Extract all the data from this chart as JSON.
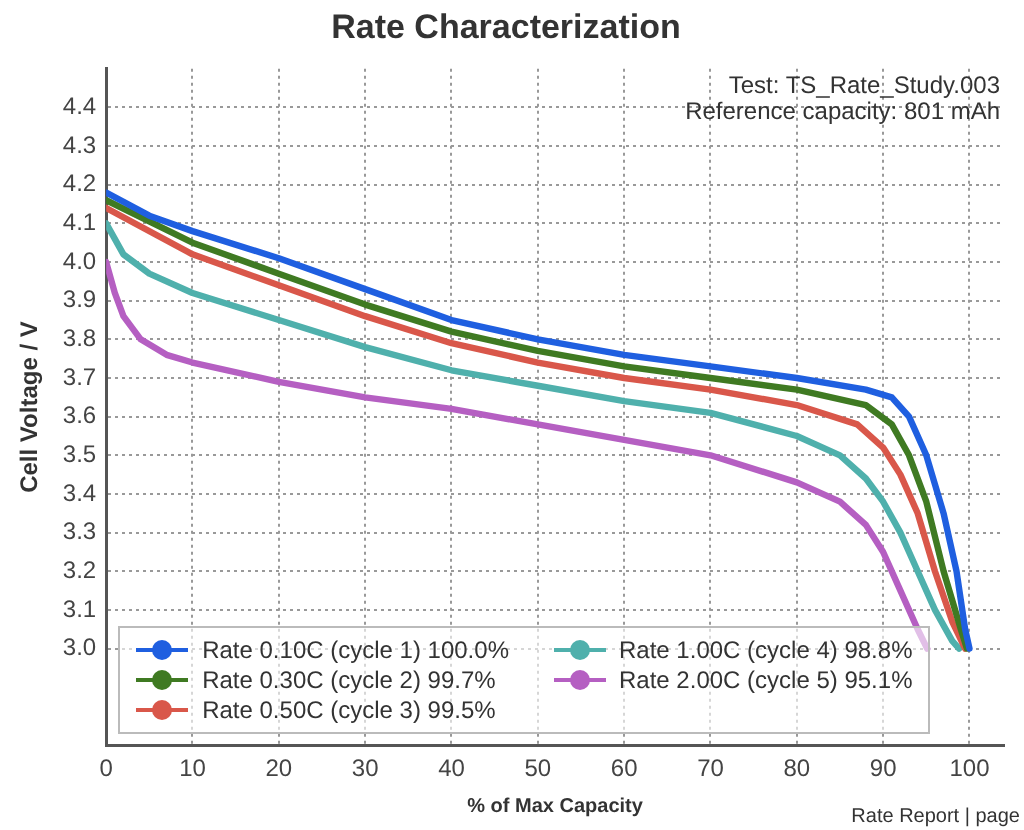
{
  "chart_data": {
    "type": "line",
    "title": "Rate Characterization",
    "xlabel": "% of Max Capacity",
    "ylabel": "Cell Voltage / V",
    "annotations": [
      "Test: TS_Rate_Study.003",
      "Reference capacity: 801 mAh",
      "Rate Report | page"
    ],
    "xlim": [
      0,
      104
    ],
    "xticks": [
      0,
      10,
      20,
      30,
      40,
      50,
      60,
      70,
      80,
      90,
      100
    ],
    "ylim": [
      2.75,
      4.5
    ],
    "yticks": [
      {
        "value": 3,
        "label": "3.0"
      },
      3.1,
      3.2,
      3.3,
      3.4,
      3.5,
      3.6,
      3.7,
      3.8,
      3.9,
      {
        "value": 4,
        "label": "4.0"
      },
      4.1,
      4.2,
      4.3,
      4.4
    ],
    "grid": true,
    "legend": "bottom left",
    "line_style": "solid",
    "marker": "none",
    "series": [
      {
        "name": "Rate 0.10C (cycle 1) 100.0%",
        "color": "#1f5fe0",
        "x": [
          0,
          5,
          10,
          20,
          30,
          40,
          50,
          60,
          70,
          80,
          88,
          91,
          93,
          95,
          97,
          98.5,
          99.5,
          100
        ],
        "values": [
          4.18,
          4.12,
          4.08,
          4.01,
          3.93,
          3.85,
          3.8,
          3.76,
          3.73,
          3.7,
          3.67,
          3.65,
          3.6,
          3.5,
          3.35,
          3.2,
          3.05,
          3.0
        ]
      },
      {
        "name": "Rate 0.30C (cycle 2) 99.7%",
        "color": "#3f7a22",
        "x": [
          0,
          10,
          20,
          30,
          40,
          50,
          60,
          70,
          80,
          88,
          91,
          93,
          95,
          97,
          99,
          99.7
        ],
        "values": [
          4.16,
          4.05,
          3.97,
          3.89,
          3.82,
          3.77,
          3.73,
          3.7,
          3.67,
          3.63,
          3.58,
          3.5,
          3.38,
          3.2,
          3.05,
          3.0
        ]
      },
      {
        "name": "Rate 0.50C (cycle 3) 99.5%",
        "color": "#d9574a",
        "x": [
          0,
          10,
          20,
          30,
          40,
          50,
          60,
          70,
          80,
          87,
          90,
          92,
          94,
          96,
          98,
          99.5
        ],
        "values": [
          4.14,
          4.02,
          3.94,
          3.86,
          3.79,
          3.74,
          3.7,
          3.67,
          3.63,
          3.58,
          3.52,
          3.45,
          3.35,
          3.2,
          3.07,
          3.0
        ]
      },
      {
        "name": "Rate 1.00C (cycle 4) 98.8%",
        "color": "#4fb0ac",
        "x": [
          0,
          2,
          5,
          10,
          20,
          30,
          40,
          50,
          60,
          70,
          80,
          85,
          88,
          90,
          92,
          94,
          96,
          98,
          98.8
        ],
        "values": [
          4.1,
          4.02,
          3.97,
          3.92,
          3.85,
          3.78,
          3.72,
          3.68,
          3.64,
          3.61,
          3.55,
          3.5,
          3.44,
          3.38,
          3.3,
          3.2,
          3.1,
          3.02,
          3.0
        ]
      },
      {
        "name": "Rate 2.00C (cycle 5) 95.1%",
        "color": "#b55fc2",
        "x": [
          0,
          1,
          2,
          4,
          7,
          10,
          20,
          30,
          40,
          50,
          60,
          70,
          80,
          85,
          88,
          90,
          92,
          94,
          95.1
        ],
        "values": [
          4.0,
          3.92,
          3.86,
          3.8,
          3.76,
          3.74,
          3.69,
          3.65,
          3.62,
          3.58,
          3.54,
          3.5,
          3.43,
          3.38,
          3.32,
          3.25,
          3.15,
          3.05,
          3.0
        ]
      }
    ]
  }
}
